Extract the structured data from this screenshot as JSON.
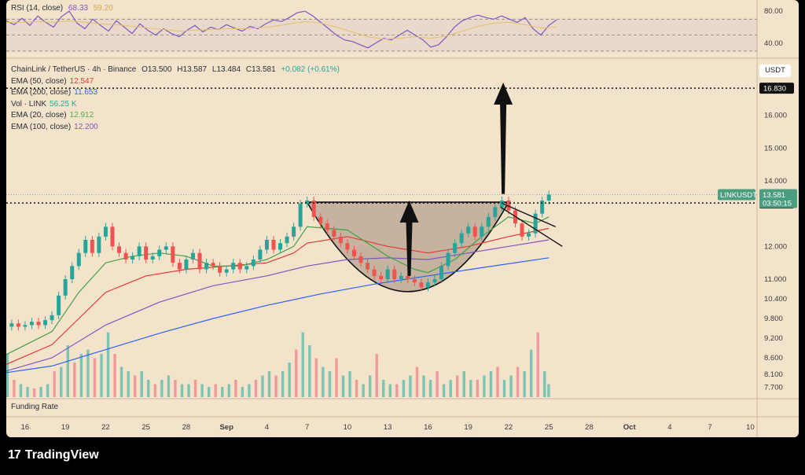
{
  "chart_data": [
    {
      "type": "line",
      "panel": "rsi",
      "title": "RSI (14, close)",
      "legend_values": [
        "68.33",
        "59.20"
      ],
      "yticks": [
        40,
        80
      ],
      "ylim": [
        25,
        92
      ],
      "guide_lines": [
        70,
        50,
        30
      ],
      "series": [
        {
          "color": "#7e57c2",
          "x": [
            0,
            10,
            20,
            30,
            40,
            50,
            60,
            70,
            80,
            90,
            100,
            110,
            120,
            130,
            140,
            150,
            160,
            170,
            180,
            190,
            200,
            210,
            220,
            230,
            240,
            250,
            260,
            270,
            280,
            290,
            300,
            310,
            320,
            330,
            340,
            350,
            360,
            370,
            380,
            390,
            400,
            410,
            420,
            430,
            440,
            450,
            460,
            470,
            480,
            490,
            500,
            510,
            520,
            530,
            540,
            550,
            560,
            570,
            580,
            590,
            600,
            610,
            620,
            630,
            640,
            650,
            660,
            670,
            680,
            690,
            700
          ],
          "values": [
            68,
            63,
            71,
            62,
            74,
            66,
            60,
            73,
            80,
            65,
            58,
            70,
            62,
            55,
            68,
            60,
            52,
            64,
            56,
            50,
            58,
            52,
            48,
            56,
            62,
            54,
            60,
            57,
            63,
            59,
            55,
            61,
            58,
            64,
            69,
            67,
            72,
            78,
            80,
            74,
            66,
            58,
            50,
            44,
            42,
            38,
            34,
            40,
            46,
            44,
            50,
            56,
            50,
            44,
            35,
            38,
            48,
            60,
            68,
            72,
            75,
            72,
            70,
            74,
            70,
            66,
            72,
            58,
            50,
            62,
            69
          ]
        },
        {
          "color": "#e6c06a",
          "x": [
            0,
            20,
            40,
            60,
            80,
            100,
            120,
            140,
            160,
            180,
            200,
            220,
            240,
            260,
            280,
            300,
            320,
            340,
            360,
            380,
            400,
            420,
            440,
            460,
            480,
            500,
            520,
            540,
            560,
            580,
            600,
            620,
            640,
            660,
            680,
            700
          ],
          "values": [
            66,
            66,
            67,
            66,
            68,
            66,
            64,
            63,
            61,
            59,
            57,
            55,
            56,
            57,
            58,
            58,
            59,
            61,
            64,
            67,
            65,
            60,
            54,
            48,
            45,
            46,
            48,
            46,
            49,
            55,
            61,
            65,
            66,
            63,
            59,
            60
          ]
        }
      ]
    },
    {
      "type": "candlestick",
      "panel": "price",
      "title": "ChainLink / TetherUS · 4h · Binance",
      "ohlc_label": {
        "o": "O13.500",
        "h": "H13.587",
        "l": "L13.484",
        "c": "C13.581",
        "chg": "+0.082 (+0.61%)"
      },
      "legend": [
        {
          "label": "EMA (50, close)",
          "value": "12.547",
          "color": "#e53935"
        },
        {
          "label": "EMA (200, close)",
          "value": "11.653",
          "color": "#2962ff"
        },
        {
          "label": "Vol · LINK",
          "value": "56.25 K",
          "color": "#26a69a"
        },
        {
          "label": "EMA (20, close)",
          "value": "12.912",
          "color": "#4caf50"
        },
        {
          "label": "EMA (100, close)",
          "value": "12.200",
          "color": "#7e57c2"
        }
      ],
      "currency": "USDT",
      "yticks": [
        "16.000",
        "15.000",
        "14.000",
        "12.000",
        "11.000",
        "10.400",
        "9.800",
        "9.200",
        "8.600",
        "8.100",
        "7.700"
      ],
      "ylim": [
        7.4,
        17.6
      ],
      "xlabels": [
        "16",
        "19",
        "22",
        "25",
        "28",
        "Sep",
        "4",
        "7",
        "10",
        "13",
        "16",
        "19",
        "22",
        "25",
        "28",
        "Oct",
        "4",
        "7",
        "10"
      ],
      "xlabel_positions": [
        16,
        19,
        22,
        25,
        28,
        31,
        34,
        37,
        40,
        43,
        46,
        49,
        52,
        55,
        58,
        61,
        64,
        67,
        70
      ],
      "xlim": [
        14.6,
        70.5
      ],
      "price_tags": [
        {
          "label": "16.830",
          "value": 16.83
        },
        {
          "label": "13.325",
          "value": 13.325
        }
      ],
      "last_price": {
        "symbol": "LINKUSDT",
        "price": "13.581",
        "countdown": "03:50:15",
        "value": 13.581
      },
      "close_series": {
        "x": [
          14.6,
          15.0,
          15.5,
          16.0,
          16.5,
          17.0,
          17.5,
          18.0,
          18.5,
          19.0,
          19.5,
          20.0,
          20.5,
          21.0,
          21.5,
          22.0,
          22.5,
          23.0,
          23.5,
          24.0,
          24.5,
          25.0,
          25.5,
          26.0,
          26.5,
          27.0,
          27.5,
          28.0,
          28.5,
          29.0,
          29.5,
          30.0,
          30.5,
          31.0,
          31.5,
          32.0,
          32.5,
          33.0,
          33.5,
          34.0,
          34.5,
          35.0,
          35.5,
          36.0,
          36.5,
          37.0,
          37.5,
          38.0,
          38.5,
          39.0,
          39.5,
          40.0,
          40.5,
          41.0,
          41.5,
          42.0,
          42.5,
          43.0,
          43.5,
          44.0,
          44.5,
          45.0,
          45.5,
          46.0,
          46.5,
          47.0,
          47.5,
          48.0,
          48.5,
          49.0,
          49.5,
          50.0,
          50.5,
          51.0,
          51.5,
          52.0,
          52.5,
          53.0,
          53.5,
          54.0,
          54.5,
          55.0
        ],
        "values": [
          9.55,
          9.65,
          9.55,
          9.6,
          9.7,
          9.6,
          9.75,
          9.9,
          10.5,
          11.0,
          11.4,
          11.8,
          12.2,
          11.8,
          12.3,
          12.6,
          12.0,
          11.8,
          11.6,
          11.7,
          12.0,
          11.6,
          11.7,
          11.9,
          12.0,
          11.5,
          11.3,
          11.6,
          11.8,
          11.3,
          11.5,
          11.4,
          11.2,
          11.3,
          11.5,
          11.3,
          11.4,
          11.6,
          11.9,
          12.2,
          11.9,
          12.1,
          12.3,
          12.6,
          13.3,
          13.4,
          12.9,
          12.7,
          12.5,
          12.3,
          12.1,
          11.9,
          11.7,
          11.5,
          11.3,
          11.1,
          11.0,
          11.3,
          11.0,
          11.1,
          11.0,
          10.9,
          10.75,
          10.9,
          11.0,
          11.4,
          11.8,
          12.1,
          12.4,
          12.6,
          12.3,
          12.6,
          12.9,
          13.2,
          13.4,
          13.1,
          12.7,
          12.3,
          12.4,
          13.0,
          13.4,
          13.58
        ]
      },
      "ema20": {
        "x": [
          14.6,
          18,
          20,
          22,
          24,
          26,
          28,
          30,
          32,
          34,
          36,
          37,
          40,
          43,
          45,
          46,
          48,
          50,
          52,
          53,
          54,
          55
        ],
        "values": [
          8.7,
          9.4,
          10.6,
          11.5,
          11.7,
          11.8,
          11.7,
          11.4,
          11.4,
          11.6,
          12.0,
          12.6,
          12.5,
          11.7,
          11.3,
          11.2,
          11.6,
          12.3,
          12.9,
          12.8,
          12.7,
          12.9
        ]
      },
      "ema50": {
        "x": [
          14.6,
          18,
          20,
          22,
          25,
          28,
          31,
          34,
          36,
          37,
          40,
          43,
          46,
          49,
          52,
          55
        ],
        "values": [
          8.4,
          9.0,
          9.8,
          10.6,
          11.1,
          11.3,
          11.4,
          11.5,
          11.8,
          12.1,
          12.3,
          12.0,
          11.8,
          12.0,
          12.3,
          12.55
        ]
      },
      "ema100": {
        "x": [
          14.6,
          18,
          22,
          26,
          30,
          34,
          37,
          40,
          43,
          46,
          49,
          52,
          55
        ],
        "values": [
          8.2,
          8.6,
          9.6,
          10.3,
          10.8,
          11.1,
          11.4,
          11.6,
          11.65,
          11.6,
          11.8,
          12.0,
          12.2
        ]
      },
      "ema200": {
        "x": [
          14.6,
          18,
          22,
          26,
          30,
          34,
          38,
          42,
          46,
          50,
          55
        ],
        "values": [
          8.15,
          8.35,
          8.85,
          9.35,
          9.8,
          10.2,
          10.55,
          10.85,
          11.1,
          11.35,
          11.653
        ]
      },
      "volume": {
        "x": [
          14.7,
          15.2,
          15.7,
          16.2,
          16.7,
          17.2,
          17.7,
          18.2,
          18.7,
          19.2,
          19.7,
          20.2,
          20.7,
          21.2,
          21.7,
          22.2,
          22.7,
          23.2,
          23.7,
          24.2,
          24.7,
          25.2,
          25.7,
          26.2,
          26.7,
          27.2,
          27.7,
          28.2,
          28.7,
          29.2,
          29.7,
          30.2,
          30.7,
          31.2,
          31.7,
          32.2,
          32.7,
          33.2,
          33.7,
          34.2,
          34.7,
          35.2,
          35.7,
          36.2,
          36.7,
          37.2,
          37.7,
          38.2,
          38.7,
          39.2,
          39.7,
          40.2,
          40.7,
          41.2,
          41.7,
          42.2,
          42.7,
          43.2,
          43.7,
          44.2,
          44.7,
          45.2,
          45.7,
          46.2,
          46.7,
          47.2,
          47.7,
          48.2,
          48.7,
          49.2,
          49.7,
          50.2,
          50.7,
          51.2,
          51.7,
          52.2,
          52.7,
          53.2,
          53.7,
          54.2,
          54.7,
          55.0
        ],
        "values": [
          0.5,
          0.2,
          0.15,
          0.12,
          0.1,
          0.12,
          0.15,
          0.3,
          0.35,
          0.6,
          0.4,
          0.5,
          0.55,
          0.45,
          0.5,
          0.75,
          0.5,
          0.35,
          0.3,
          0.25,
          0.3,
          0.2,
          0.15,
          0.2,
          0.25,
          0.2,
          0.15,
          0.15,
          0.2,
          0.15,
          0.12,
          0.15,
          0.12,
          0.15,
          0.2,
          0.12,
          0.15,
          0.2,
          0.25,
          0.3,
          0.25,
          0.3,
          0.4,
          0.55,
          0.75,
          0.6,
          0.45,
          0.35,
          0.3,
          0.45,
          0.25,
          0.3,
          0.2,
          0.15,
          0.25,
          0.5,
          0.2,
          0.15,
          0.15,
          0.2,
          0.25,
          0.35,
          0.25,
          0.2,
          0.3,
          0.15,
          0.2,
          0.25,
          0.3,
          0.2,
          0.2,
          0.25,
          0.3,
          0.35,
          0.2,
          0.25,
          0.35,
          0.3,
          0.55,
          0.75,
          0.3,
          0.15
        ],
        "up_color": "#7cc4b4",
        "down_color": "#ef9a9a"
      },
      "pattern": {
        "cup_left": [
          37.0,
          13.35
        ],
        "cup_right": [
          52.0,
          13.35
        ],
        "cup_bottom": [
          44.5,
          10.62
        ],
        "resistance": 13.325,
        "target": 16.83,
        "flag_upper": [
          [
            51.6,
            13.3
          ],
          [
            55.5,
            12.6
          ]
        ],
        "flag_lower": [
          [
            51.4,
            13.2
          ],
          [
            56.0,
            12.0
          ]
        ]
      },
      "secondary_panel_label": "Funding Rate"
    }
  ],
  "branding": {
    "logo_text": "TradingView",
    "logo_mark": "17"
  }
}
